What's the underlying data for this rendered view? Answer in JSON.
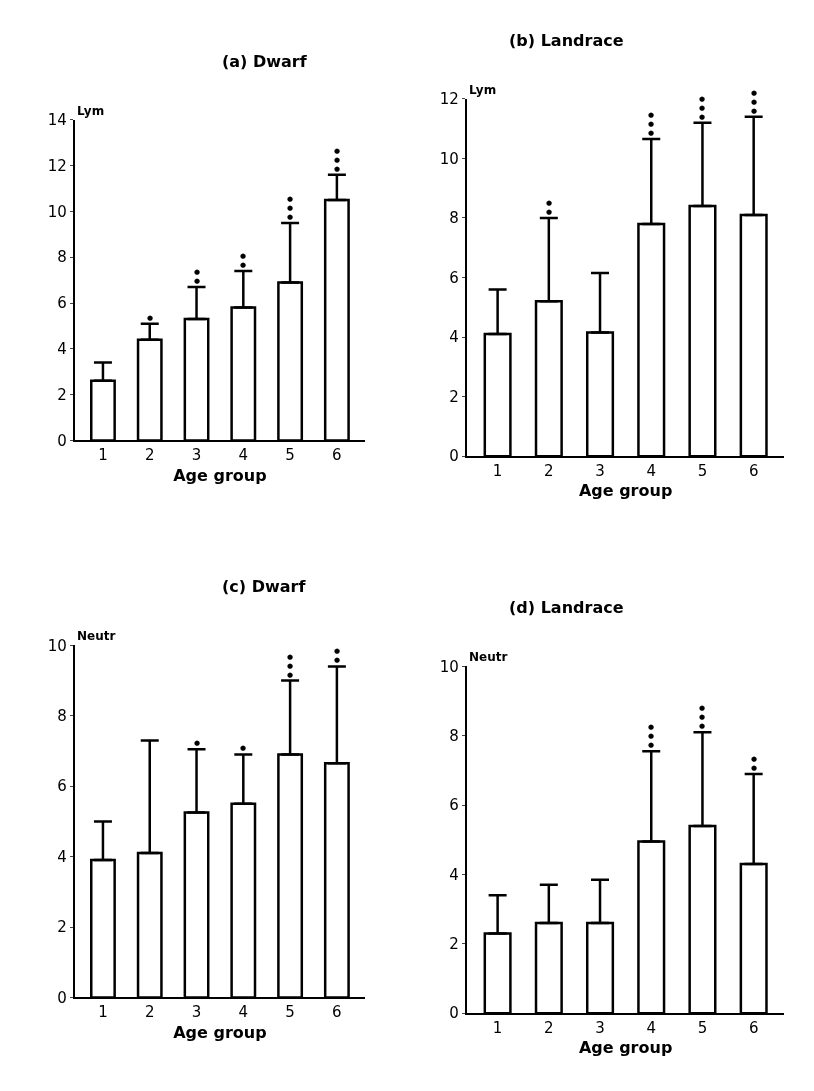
{
  "chart_data": [
    {
      "type": "bar",
      "title": "(a) Dwarf",
      "xlabel": "Age group",
      "ylabel": "Lym",
      "categories": [
        "1",
        "2",
        "3",
        "4",
        "5",
        "6"
      ],
      "values": [
        2.6,
        4.4,
        5.3,
        5.8,
        6.9,
        10.5
      ],
      "errors": [
        [
          2.6,
          3.4
        ],
        [
          4.4,
          5.1
        ],
        [
          5.3,
          6.7
        ],
        [
          5.8,
          7.4
        ],
        [
          6.9,
          9.5
        ],
        [
          10.5,
          11.6
        ]
      ],
      "color": "#ffffff",
      "ylim": [
        0,
        14
      ],
      "yticks": [
        0,
        2,
        4,
        6,
        8,
        10,
        12,
        14
      ],
      "annotations": [
        {
          "text": "●",
          "x": "2",
          "y": 5.1
        },
        {
          "text": "●●",
          "x": "3",
          "y": 6.7
        },
        {
          "text": "●●",
          "x": "4",
          "y": 7.4
        },
        {
          "text": "●●●",
          "x": "5",
          "y": 9.5
        },
        {
          "text": "●●●",
          "x": "6",
          "y": 11.6
        }
      ]
    },
    {
      "type": "bar",
      "title": "(b) Landrace",
      "xlabel": "Age group",
      "ylabel": "Lym",
      "categories": [
        "1",
        "2",
        "3",
        "4",
        "5",
        "6"
      ],
      "values": [
        4.1,
        5.2,
        4.15,
        7.8,
        8.4,
        8.1
      ],
      "errors": [
        [
          4.1,
          5.6
        ],
        [
          5.2,
          8.0
        ],
        [
          4.15,
          6.15
        ],
        [
          7.8,
          10.65
        ],
        [
          8.4,
          11.2
        ],
        [
          8.1,
          11.4
        ]
      ],
      "color": "#ffffff",
      "ylim": [
        0,
        12
      ],
      "yticks": [
        0,
        2,
        4,
        6,
        8,
        10,
        12
      ],
      "annotations": [
        {
          "text": "●●",
          "x": "2",
          "y": 8.0
        },
        {
          "text": "●●●",
          "x": "4",
          "y": 10.65
        },
        {
          "text": "●●●",
          "x": "5",
          "y": 11.2
        },
        {
          "text": "●●●",
          "x": "6",
          "y": 11.4
        }
      ]
    },
    {
      "type": "bar",
      "title": "(c) Dwarf",
      "xlabel": "Age group",
      "ylabel": "Neutr",
      "categories": [
        "1",
        "2",
        "3",
        "4",
        "5",
        "6"
      ],
      "values": [
        3.9,
        4.1,
        5.25,
        5.5,
        6.9,
        6.65
      ],
      "errors": [
        [
          3.9,
          5.0
        ],
        [
          4.1,
          7.3
        ],
        [
          5.25,
          7.05
        ],
        [
          5.5,
          6.9
        ],
        [
          6.9,
          9.0
        ],
        [
          6.65,
          9.4
        ]
      ],
      "color": "#ffffff",
      "ylim": [
        0,
        10
      ],
      "yticks": [
        0,
        2,
        4,
        6,
        8,
        10
      ],
      "annotations": [
        {
          "text": "●",
          "x": "3",
          "y": 7.05
        },
        {
          "text": "●",
          "x": "4",
          "y": 6.9
        },
        {
          "text": "●●●",
          "x": "5",
          "y": 9.0
        },
        {
          "text": "●●",
          "x": "6",
          "y": 9.4
        }
      ]
    },
    {
      "type": "bar",
      "title": "(d) Landrace",
      "xlabel": "Age group",
      "ylabel": "Neutr",
      "categories": [
        "1",
        "2",
        "3",
        "4",
        "5",
        "6"
      ],
      "values": [
        2.3,
        2.6,
        2.6,
        4.95,
        5.4,
        4.3
      ],
      "errors": [
        [
          2.3,
          3.4
        ],
        [
          2.6,
          3.7
        ],
        [
          2.6,
          3.85
        ],
        [
          4.95,
          7.55
        ],
        [
          5.4,
          8.1
        ],
        [
          4.3,
          6.9
        ]
      ],
      "color": "#ffffff",
      "ylim": [
        0,
        10
      ],
      "yticks": [
        0,
        2,
        4,
        6,
        8,
        10
      ],
      "annotations": [
        {
          "text": "●●●",
          "x": "4",
          "y": 7.55
        },
        {
          "text": "●●●",
          "x": "5",
          "y": 8.1
        },
        {
          "text": "●●",
          "x": "6",
          "y": 6.9
        }
      ]
    }
  ]
}
